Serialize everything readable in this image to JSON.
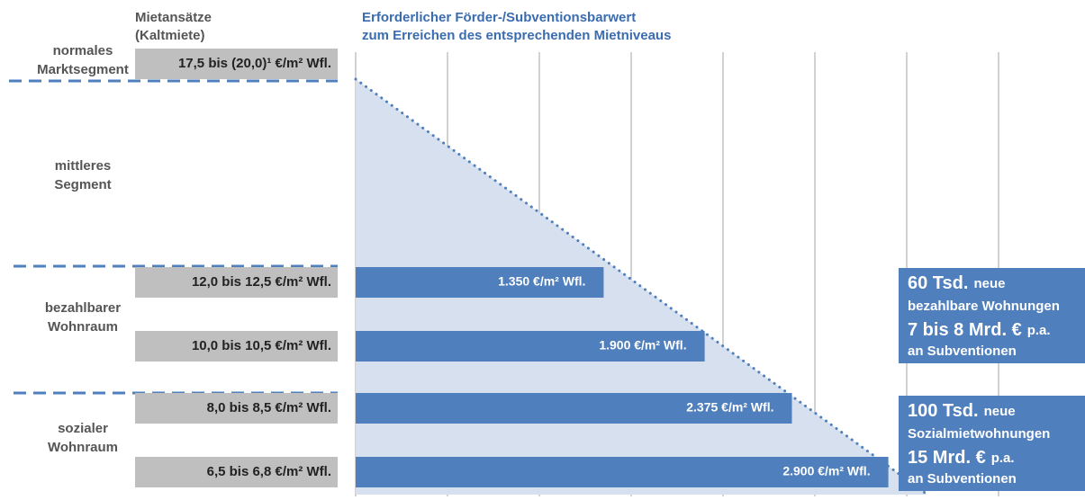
{
  "chart_data": {
    "type": "bar",
    "orientation": "horizontal",
    "headers": {
      "left": [
        "Mietansätze",
        "(Kaltmiete)"
      ],
      "right": [
        "Erforderlicher Förder-/Subventionsbarwert",
        "zum Erreichen des entsprechenden Mietniveaus"
      ]
    },
    "segments": [
      [
        "normales",
        "Marktsegment"
      ],
      [
        "mittleres",
        "Segment"
      ],
      [
        "bezahlbarer",
        "Wohnraum"
      ],
      [
        "sozialer",
        "Wohnraum"
      ]
    ],
    "categories": [
      "17,5 bis (20,0)¹ €/m² Wfl.",
      "12,0 bis 12,5  €/m² Wfl.",
      "10,0 bis 10,5  €/m² Wfl.",
      "8,0 bis 8,5 €/m² Wfl.",
      "6,5 bis 6,8 €/m² Wfl."
    ],
    "values": [
      null,
      1350,
      1900,
      2375,
      2900
    ],
    "value_labels": [
      null,
      "1.350 €/m² Wfl.",
      "1.900 €/m² Wfl.",
      "2.375 €/m² Wfl.",
      "2.900 €/m² Wfl."
    ],
    "color": "#4f7fbd",
    "xlim": [
      0,
      3500
    ],
    "xticks": [
      0,
      500,
      1000,
      1500,
      2000,
      2500,
      3000,
      3500
    ],
    "grid": true,
    "notes": [
      [
        [
          "60 Tsd.",
          "neue"
        ],
        [
          "bezahlbare Wohnungen"
        ],
        [
          "7 bis 8 Mrd. €",
          "p.a."
        ],
        [
          "an Subventionen"
        ]
      ],
      [
        [
          "100 Tsd.",
          "neue"
        ],
        [
          "Sozialmietwohnungen"
        ],
        [
          "15 Mrd. €",
          "p.a."
        ],
        [
          "an Subventionen"
        ]
      ]
    ]
  }
}
